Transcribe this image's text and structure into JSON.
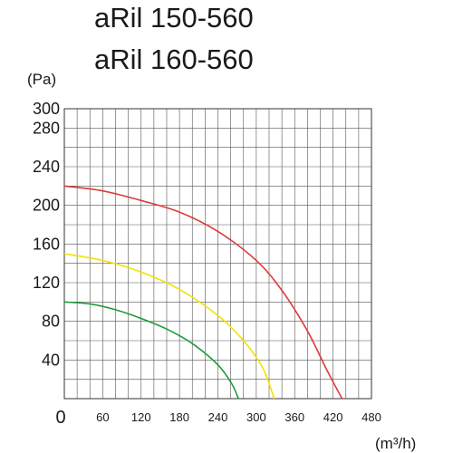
{
  "chart_data": {
    "type": "line",
    "title_lines": [
      "aRil 150-560",
      "aRil 160-560"
    ],
    "ylabel": "(Pa)",
    "xlabel": "(m³/h)",
    "xlim": [
      0,
      480
    ],
    "ylim": [
      0,
      300
    ],
    "xticks": [
      0,
      60,
      120,
      180,
      240,
      300,
      360,
      420,
      480
    ],
    "xtick_labels": [
      "0",
      "60",
      "120",
      "180",
      "240",
      "300",
      "360",
      "420",
      "480"
    ],
    "yticks": [
      40,
      80,
      120,
      160,
      200,
      240,
      280,
      300
    ],
    "ytick_labels": [
      "40",
      "80",
      "120",
      "160",
      "200",
      "240",
      "280",
      "300"
    ],
    "grid": true,
    "legend": "none",
    "series": [
      {
        "color": "#e0393a",
        "points": [
          [
            0,
            220
          ],
          [
            60,
            215
          ],
          [
            120,
            205
          ],
          [
            180,
            193
          ],
          [
            240,
            173
          ],
          [
            300,
            143
          ],
          [
            340,
            112
          ],
          [
            380,
            70
          ],
          [
            410,
            30
          ],
          [
            434,
            0
          ]
        ]
      },
      {
        "color": "#f2e300",
        "points": [
          [
            0,
            150
          ],
          [
            60,
            143
          ],
          [
            120,
            131
          ],
          [
            180,
            113
          ],
          [
            240,
            86
          ],
          [
            280,
            60
          ],
          [
            310,
            32
          ],
          [
            328,
            0
          ]
        ]
      },
      {
        "color": "#1f9a3c",
        "points": [
          [
            0,
            100
          ],
          [
            40,
            98
          ],
          [
            80,
            92
          ],
          [
            120,
            83
          ],
          [
            160,
            72
          ],
          [
            200,
            57
          ],
          [
            240,
            35
          ],
          [
            262,
            15
          ],
          [
            272,
            0
          ]
        ]
      }
    ]
  }
}
